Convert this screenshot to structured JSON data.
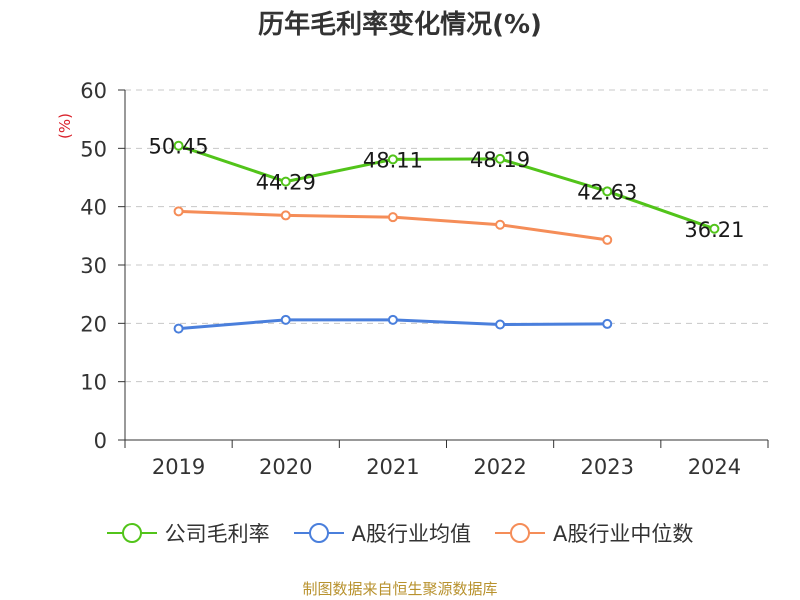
{
  "chart_data": {
    "type": "line",
    "title": "历年毛利率变化情况(%)",
    "ylabel": "(%)",
    "xlabel": "",
    "ylim": [
      0,
      60
    ],
    "yticks": [
      0,
      10,
      20,
      30,
      40,
      50,
      60
    ],
    "grid": true,
    "legend_position": "bottom",
    "categories": [
      "2019",
      "2020",
      "2021",
      "2022",
      "2023",
      "2024"
    ],
    "series": [
      {
        "name": "公司毛利率",
        "color": "#52c41a",
        "values": [
          50.45,
          44.29,
          48.11,
          48.19,
          42.63,
          36.21
        ],
        "labels": [
          "50.45",
          "44.29",
          "48.11",
          "48.19",
          "42.63",
          "36.21"
        ]
      },
      {
        "name": "A股行业均值",
        "color": "#4a7fdc",
        "values": [
          19.1,
          20.6,
          20.6,
          19.8,
          19.9,
          null
        ]
      },
      {
        "name": "A股行业中位数",
        "color": "#f58d58",
        "values": [
          39.2,
          38.5,
          38.2,
          36.9,
          34.3,
          null
        ]
      }
    ]
  },
  "source": "制图数据来自恒生聚源数据库"
}
